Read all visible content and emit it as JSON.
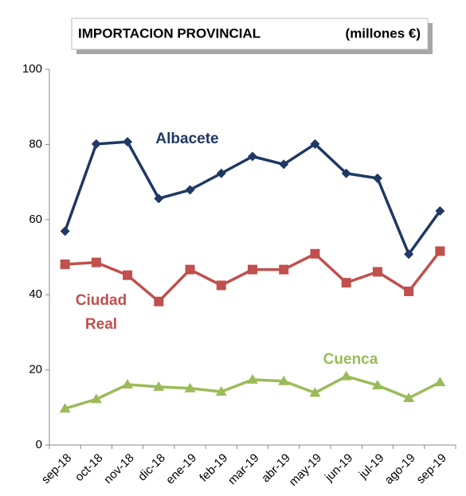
{
  "chart_data": {
    "type": "line",
    "title": "IMPORTACION PROVINCIAL",
    "units": "(millones €)",
    "categories": [
      "sep-18",
      "oct-18",
      "nov-18",
      "dic-18",
      "ene-19",
      "feb-19",
      "mar-19",
      "abr-19",
      "may-19",
      "jun-19",
      "jul-19",
      "ago-19",
      "sep-19"
    ],
    "series": [
      {
        "name": "Albacete",
        "color": "#1f3864",
        "marker": "diamond",
        "values": [
          56.9,
          80.1,
          80.7,
          65.6,
          67.9,
          72.3,
          76.8,
          74.7,
          80.1,
          72.3,
          71.0,
          50.8,
          62.3
        ]
      },
      {
        "name": "Ciudad Real",
        "color": "#c0504d",
        "marker": "square",
        "values": [
          48.1,
          48.6,
          45.2,
          38.2,
          46.7,
          42.5,
          46.7,
          46.7,
          50.9,
          43.2,
          46.1,
          40.9,
          51.6
        ]
      },
      {
        "name": "Cuenca",
        "color": "#9bbb59",
        "marker": "triangle",
        "values": [
          9.7,
          12.2,
          16.1,
          15.5,
          15.1,
          14.2,
          17.4,
          17.0,
          13.9,
          18.3,
          15.9,
          12.5,
          16.7
        ]
      }
    ],
    "ylim": [
      0,
      100
    ],
    "yticks": [
      0,
      20,
      40,
      60,
      80,
      100
    ],
    "grid": false
  }
}
